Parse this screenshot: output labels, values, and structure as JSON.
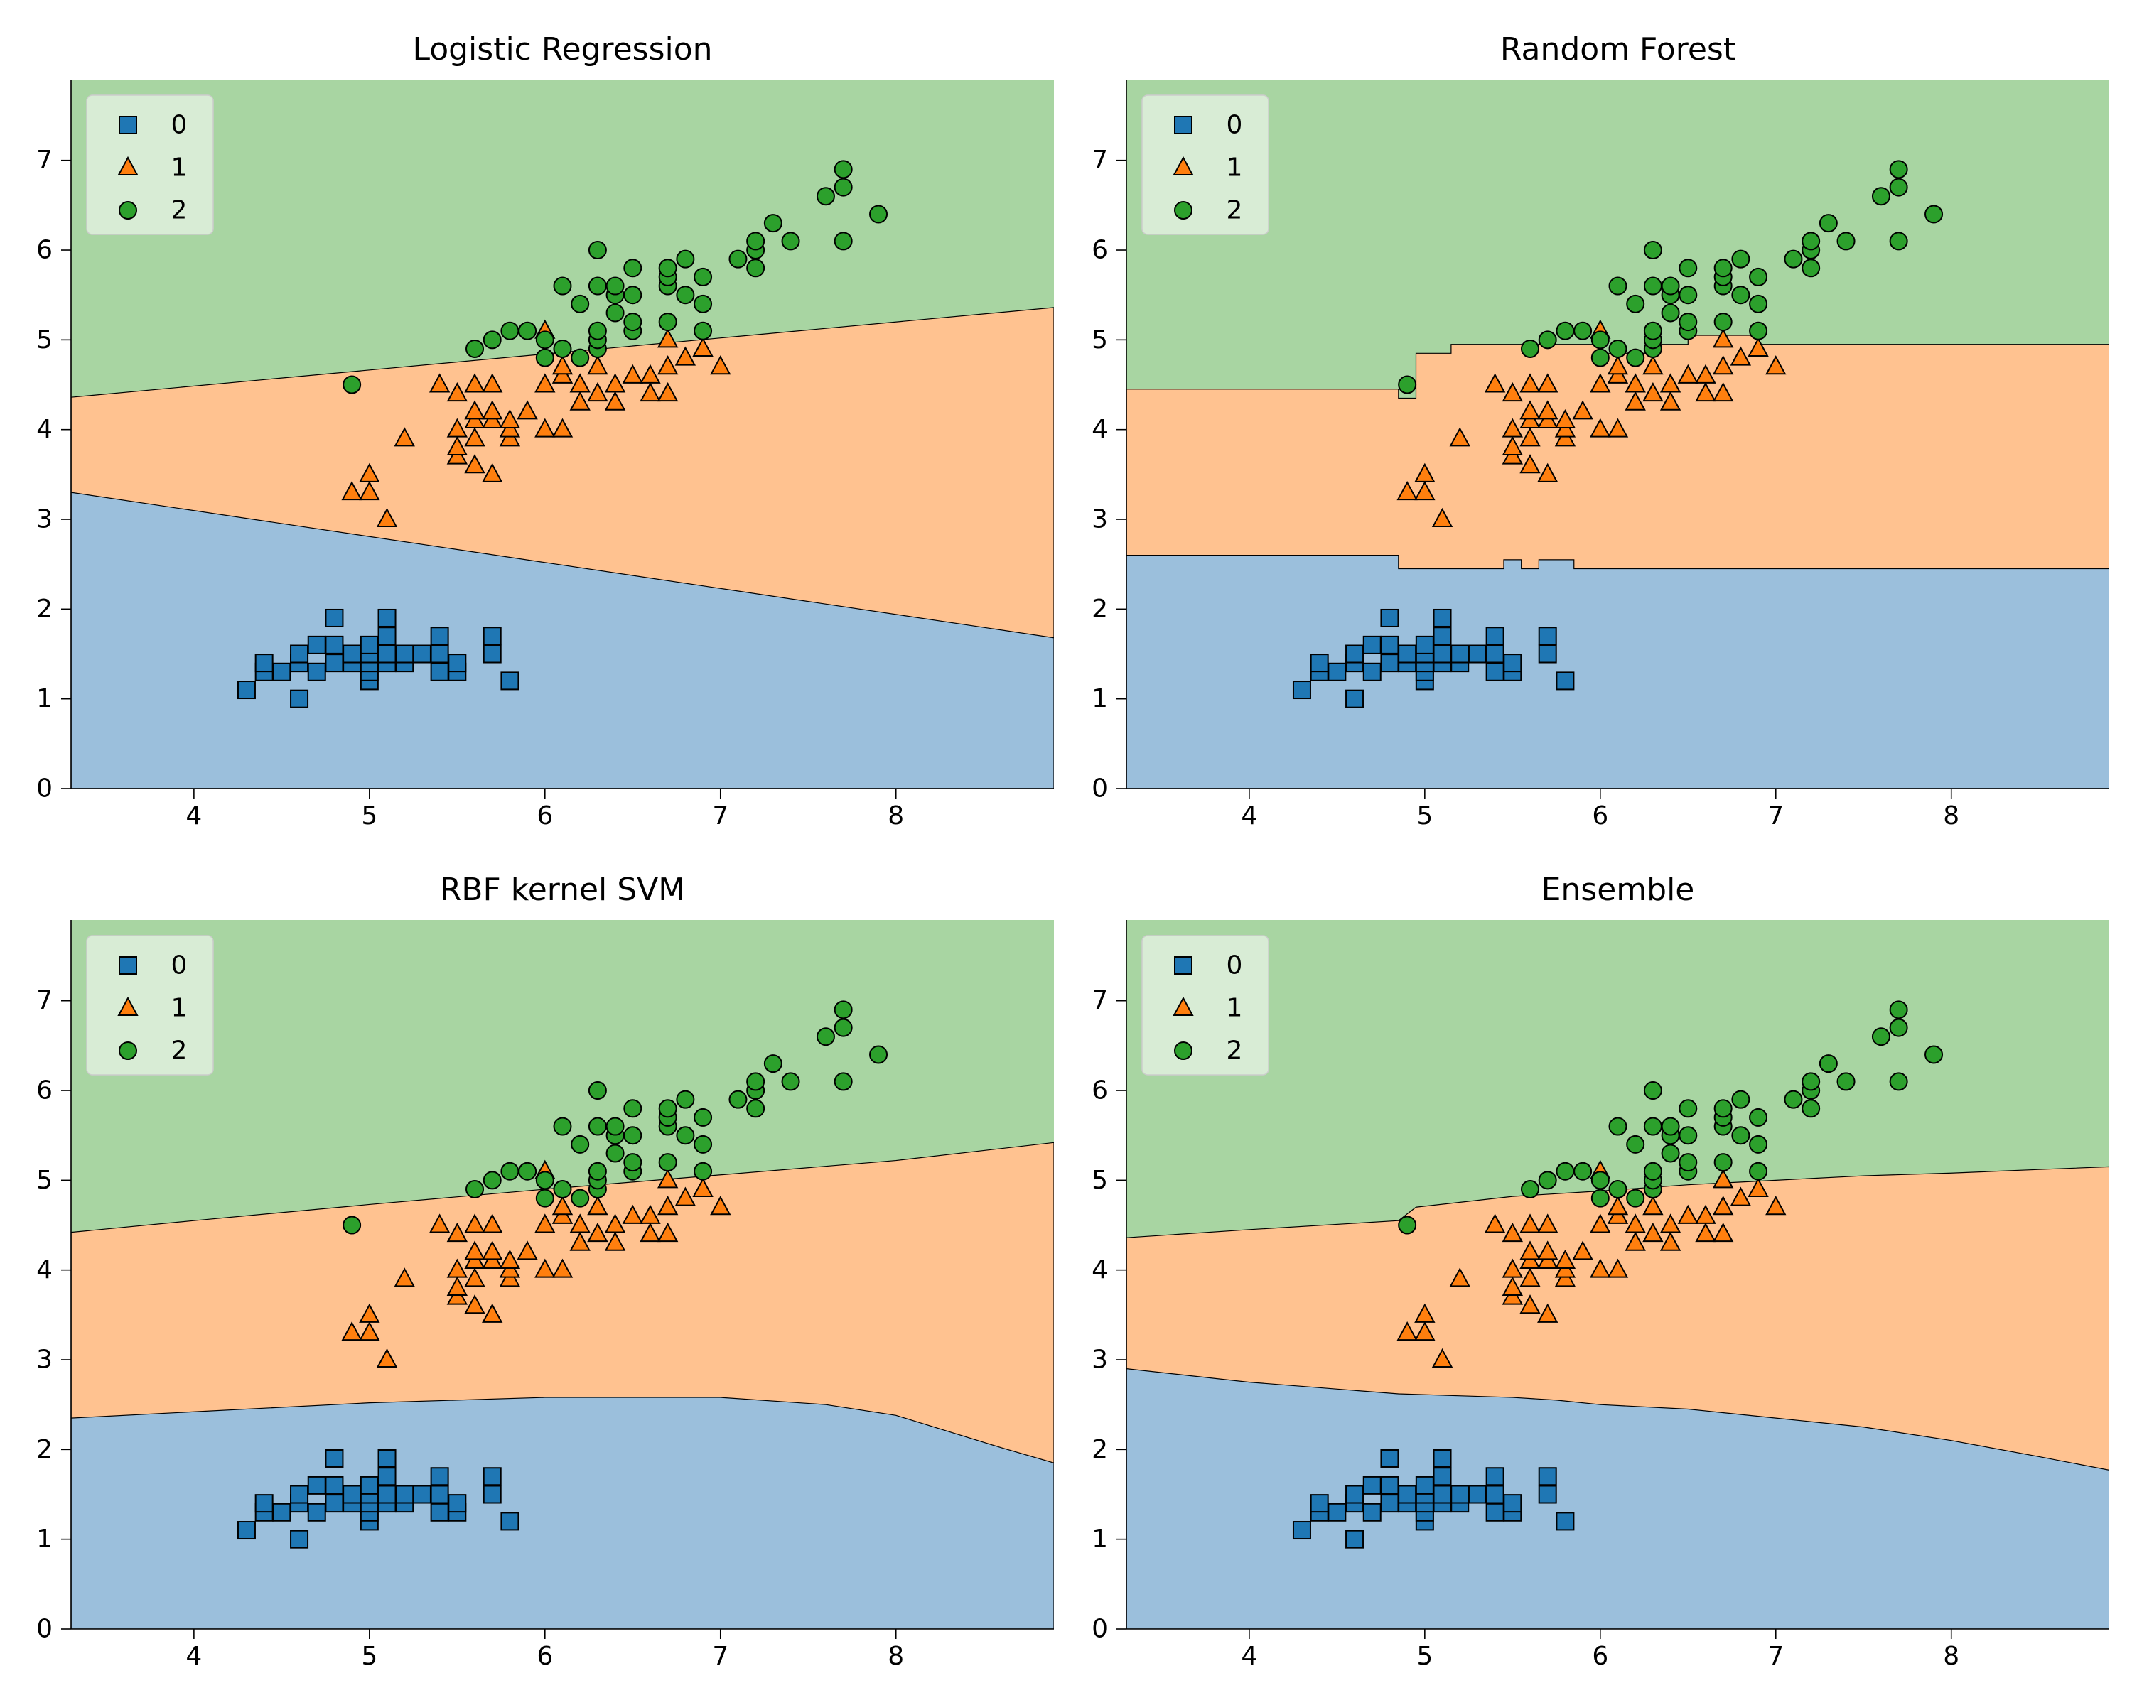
{
  "colors": {
    "class0": "#1f77b4",
    "class1": "#ff7f0e",
    "class2": "#2ca02c",
    "region0": "#9bbfdc",
    "region1": "#ffc290",
    "region2": "#a8d5a2"
  },
  "points": {
    "class0": [
      [
        4.3,
        1.1
      ],
      [
        4.4,
        1.3
      ],
      [
        4.4,
        1.4
      ],
      [
        4.5,
        1.3
      ],
      [
        4.6,
        1.0
      ],
      [
        4.6,
        1.4
      ],
      [
        4.6,
        1.5
      ],
      [
        4.7,
        1.3
      ],
      [
        4.7,
        1.6
      ],
      [
        4.8,
        1.4
      ],
      [
        4.8,
        1.6
      ],
      [
        4.8,
        1.9
      ],
      [
        4.9,
        1.4
      ],
      [
        4.9,
        1.5
      ],
      [
        5.0,
        1.2
      ],
      [
        5.0,
        1.3
      ],
      [
        5.0,
        1.4
      ],
      [
        5.0,
        1.5
      ],
      [
        5.0,
        1.6
      ],
      [
        5.1,
        1.4
      ],
      [
        5.1,
        1.5
      ],
      [
        5.1,
        1.7
      ],
      [
        5.1,
        1.9
      ],
      [
        5.2,
        1.4
      ],
      [
        5.2,
        1.5
      ],
      [
        5.3,
        1.5
      ],
      [
        5.4,
        1.3
      ],
      [
        5.4,
        1.5
      ],
      [
        5.4,
        1.7
      ],
      [
        5.5,
        1.3
      ],
      [
        5.5,
        1.4
      ],
      [
        5.7,
        1.5
      ],
      [
        5.7,
        1.7
      ],
      [
        5.8,
        1.2
      ]
    ],
    "class1": [
      [
        4.9,
        3.3
      ],
      [
        5.0,
        3.3
      ],
      [
        5.0,
        3.5
      ],
      [
        5.1,
        3.0
      ],
      [
        5.2,
        3.9
      ],
      [
        5.4,
        4.5
      ],
      [
        5.5,
        3.7
      ],
      [
        5.5,
        3.8
      ],
      [
        5.5,
        4.0
      ],
      [
        5.5,
        4.4
      ],
      [
        5.6,
        3.6
      ],
      [
        5.6,
        3.9
      ],
      [
        5.6,
        4.1
      ],
      [
        5.6,
        4.2
      ],
      [
        5.6,
        4.5
      ],
      [
        5.7,
        3.5
      ],
      [
        5.7,
        4.1
      ],
      [
        5.7,
        4.2
      ],
      [
        5.7,
        4.5
      ],
      [
        5.8,
        3.9
      ],
      [
        5.8,
        4.0
      ],
      [
        5.8,
        4.1
      ],
      [
        5.9,
        4.2
      ],
      [
        6.0,
        4.0
      ],
      [
        6.0,
        4.5
      ],
      [
        6.0,
        5.1
      ],
      [
        6.1,
        4.0
      ],
      [
        6.1,
        4.6
      ],
      [
        6.1,
        4.7
      ],
      [
        6.2,
        4.3
      ],
      [
        6.2,
        4.5
      ],
      [
        6.3,
        4.4
      ],
      [
        6.3,
        4.7
      ],
      [
        6.4,
        4.3
      ],
      [
        6.4,
        4.5
      ],
      [
        6.5,
        4.6
      ],
      [
        6.6,
        4.4
      ],
      [
        6.6,
        4.6
      ],
      [
        6.7,
        4.4
      ],
      [
        6.7,
        4.7
      ],
      [
        6.7,
        5.0
      ],
      [
        6.8,
        4.8
      ],
      [
        6.9,
        4.9
      ],
      [
        7.0,
        4.7
      ]
    ],
    "class2": [
      [
        4.9,
        4.5
      ],
      [
        5.6,
        4.9
      ],
      [
        5.7,
        5.0
      ],
      [
        5.8,
        5.1
      ],
      [
        5.9,
        5.1
      ],
      [
        6.0,
        4.8
      ],
      [
        6.0,
        5.0
      ],
      [
        6.1,
        4.9
      ],
      [
        6.1,
        5.6
      ],
      [
        6.2,
        4.8
      ],
      [
        6.2,
        5.4
      ],
      [
        6.3,
        4.9
      ],
      [
        6.3,
        5.0
      ],
      [
        6.3,
        5.1
      ],
      [
        6.3,
        5.6
      ],
      [
        6.3,
        6.0
      ],
      [
        6.4,
        5.3
      ],
      [
        6.4,
        5.5
      ],
      [
        6.4,
        5.6
      ],
      [
        6.5,
        5.1
      ],
      [
        6.5,
        5.2
      ],
      [
        6.5,
        5.5
      ],
      [
        6.5,
        5.8
      ],
      [
        6.7,
        5.2
      ],
      [
        6.7,
        5.6
      ],
      [
        6.7,
        5.7
      ],
      [
        6.7,
        5.8
      ],
      [
        6.8,
        5.5
      ],
      [
        6.8,
        5.9
      ],
      [
        6.9,
        5.1
      ],
      [
        6.9,
        5.4
      ],
      [
        6.9,
        5.7
      ],
      [
        7.1,
        5.9
      ],
      [
        7.2,
        5.8
      ],
      [
        7.2,
        6.0
      ],
      [
        7.2,
        6.1
      ],
      [
        7.3,
        6.3
      ],
      [
        7.4,
        6.1
      ],
      [
        7.6,
        6.6
      ],
      [
        7.7,
        6.1
      ],
      [
        7.7,
        6.7
      ],
      [
        7.7,
        6.9
      ],
      [
        7.9,
        6.4
      ]
    ]
  },
  "chart_data": [
    {
      "type": "scatter",
      "title": "Logistic Regression",
      "xlabel": "",
      "ylabel": "",
      "xlim": [
        3.3,
        8.9
      ],
      "ylim": [
        0,
        7.9
      ],
      "xticks": [
        "4",
        "5",
        "6",
        "7",
        "8"
      ],
      "yticks": [
        "0",
        "1",
        "2",
        "3",
        "4",
        "5",
        "6",
        "7"
      ],
      "grid": false,
      "legend": {
        "placement": "upper-left",
        "entries": [
          "0",
          "1",
          "2"
        ]
      },
      "boundary_01": [
        [
          3.3,
          3.3
        ],
        [
          8.9,
          1.68
        ]
      ],
      "boundary_12": [
        [
          3.3,
          4.36
        ],
        [
          8.9,
          5.36
        ]
      ]
    },
    {
      "type": "scatter",
      "title": "Random Forest",
      "xlabel": "",
      "ylabel": "",
      "xlim": [
        3.3,
        8.9
      ],
      "ylim": [
        0,
        7.9
      ],
      "xticks": [
        "4",
        "5",
        "6",
        "7",
        "8"
      ],
      "yticks": [
        "0",
        "1",
        "2",
        "3",
        "4",
        "5",
        "6",
        "7"
      ],
      "grid": false,
      "legend": {
        "placement": "upper-left",
        "entries": [
          "0",
          "1",
          "2"
        ]
      },
      "boundary_01": [
        [
          3.3,
          2.6
        ],
        [
          4.85,
          2.6
        ],
        [
          4.85,
          2.45
        ],
        [
          5.45,
          2.45
        ],
        [
          5.45,
          2.55
        ],
        [
          5.55,
          2.55
        ],
        [
          5.55,
          2.45
        ],
        [
          5.65,
          2.45
        ],
        [
          5.65,
          2.55
        ],
        [
          5.85,
          2.55
        ],
        [
          5.85,
          2.45
        ],
        [
          8.9,
          2.45
        ]
      ],
      "boundary_12": [
        [
          3.3,
          4.45
        ],
        [
          4.85,
          4.45
        ],
        [
          4.85,
          4.35
        ],
        [
          4.95,
          4.35
        ],
        [
          4.95,
          4.85
        ],
        [
          5.15,
          4.85
        ],
        [
          5.15,
          4.95
        ],
        [
          6.0,
          4.95
        ],
        [
          6.0,
          4.85
        ],
        [
          6.3,
          4.85
        ],
        [
          6.3,
          4.95
        ],
        [
          6.5,
          4.95
        ],
        [
          6.5,
          5.05
        ],
        [
          6.9,
          5.05
        ],
        [
          6.9,
          4.95
        ],
        [
          8.9,
          4.95
        ]
      ]
    },
    {
      "type": "scatter",
      "title": "RBF kernel SVM",
      "xlabel": "",
      "ylabel": "",
      "xlim": [
        3.3,
        8.9
      ],
      "ylim": [
        0,
        7.9
      ],
      "xticks": [
        "4",
        "5",
        "6",
        "7",
        "8"
      ],
      "yticks": [
        "0",
        "1",
        "2",
        "3",
        "4",
        "5",
        "6",
        "7"
      ],
      "grid": false,
      "legend": {
        "placement": "upper-left",
        "entries": [
          "0",
          "1",
          "2"
        ]
      },
      "boundary_01": [
        [
          3.3,
          2.35
        ],
        [
          4.0,
          2.42
        ],
        [
          5.0,
          2.52
        ],
        [
          6.0,
          2.58
        ],
        [
          7.0,
          2.58
        ],
        [
          7.6,
          2.5
        ],
        [
          8.0,
          2.38
        ],
        [
          8.3,
          2.2
        ],
        [
          8.6,
          2.02
        ],
        [
          8.9,
          1.85
        ]
      ],
      "boundary_12": [
        [
          3.3,
          4.42
        ],
        [
          4.0,
          4.55
        ],
        [
          5.0,
          4.73
        ],
        [
          6.0,
          4.9
        ],
        [
          7.0,
          5.06
        ],
        [
          8.0,
          5.22
        ],
        [
          8.9,
          5.42
        ]
      ]
    },
    {
      "type": "scatter",
      "title": "Ensemble",
      "xlabel": "",
      "ylabel": "",
      "xlim": [
        3.3,
        8.9
      ],
      "ylim": [
        0,
        7.9
      ],
      "xticks": [
        "4",
        "5",
        "6",
        "7",
        "8"
      ],
      "yticks": [
        "0",
        "1",
        "2",
        "3",
        "4",
        "5",
        "6",
        "7"
      ],
      "grid": false,
      "legend": {
        "placement": "upper-left",
        "entries": [
          "0",
          "1",
          "2"
        ]
      },
      "boundary_01": [
        [
          3.3,
          2.9
        ],
        [
          4.0,
          2.75
        ],
        [
          4.85,
          2.62
        ],
        [
          5.5,
          2.58
        ],
        [
          5.75,
          2.55
        ],
        [
          6.0,
          2.5
        ],
        [
          6.5,
          2.45
        ],
        [
          7.0,
          2.35
        ],
        [
          7.5,
          2.25
        ],
        [
          8.0,
          2.1
        ],
        [
          8.5,
          1.92
        ],
        [
          8.9,
          1.77
        ]
      ],
      "boundary_12": [
        [
          3.3,
          4.36
        ],
        [
          4.0,
          4.45
        ],
        [
          4.85,
          4.55
        ],
        [
          4.95,
          4.7
        ],
        [
          5.5,
          4.82
        ],
        [
          6.0,
          4.88
        ],
        [
          6.5,
          4.95
        ],
        [
          7.0,
          5.0
        ],
        [
          7.5,
          5.05
        ],
        [
          8.0,
          5.08
        ],
        [
          8.5,
          5.12
        ],
        [
          8.9,
          5.15
        ]
      ]
    }
  ]
}
